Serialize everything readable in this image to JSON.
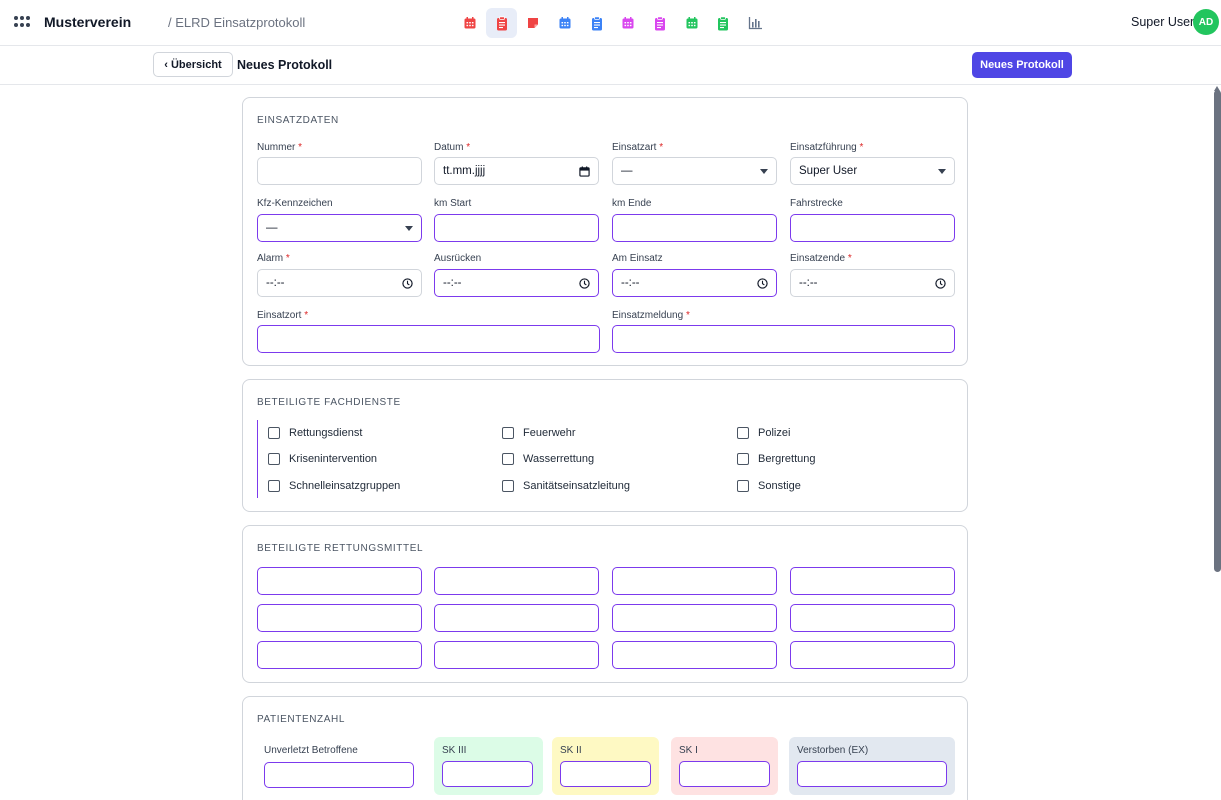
{
  "header": {
    "brand": "Musterverein",
    "breadcrumb": "/ ELRD Einsatzprotokoll",
    "apps": [
      {
        "icon": "calendar-icon",
        "color": "#ef4444"
      },
      {
        "icon": "clipboard-icon",
        "color": "#ef4444",
        "active": true
      },
      {
        "icon": "note-icon",
        "color": "#ef4444"
      },
      {
        "icon": "calendar-icon",
        "color": "#3b82f6"
      },
      {
        "icon": "clipboard-icon",
        "color": "#3b82f6"
      },
      {
        "icon": "calendar-icon",
        "color": "#d946ef"
      },
      {
        "icon": "clipboard-icon",
        "color": "#d946ef"
      },
      {
        "icon": "calendar-icon",
        "color": "#22c55e"
      },
      {
        "icon": "clipboard-icon",
        "color": "#22c55e"
      },
      {
        "icon": "bar-chart-icon",
        "color": "#64748b"
      }
    ],
    "user_name": "Super User",
    "avatar_initials": "AD"
  },
  "subbar": {
    "back_label": "‹ Übersicht",
    "title": "Neues Protokoll",
    "primary_label": "Neues Protokoll"
  },
  "einsatzdaten": {
    "title": "EINSATZDATEN",
    "nummer": {
      "label": "Nummer",
      "value": ""
    },
    "datum": {
      "label": "Datum",
      "value": "tt.mm.jjjj"
    },
    "einsatzart": {
      "label": "Einsatzart",
      "value": "—"
    },
    "einsatzfuehrung": {
      "label": "Einsatzführung",
      "value": "Super User"
    },
    "kfz": {
      "label": "Kfz-Kennzeichen",
      "value": "—"
    },
    "km_start": {
      "label": "km Start",
      "value": ""
    },
    "km_ende": {
      "label": "km Ende",
      "value": ""
    },
    "fahrstrecke": {
      "label": "Fahrstrecke",
      "value": ""
    },
    "alarm": {
      "label": "Alarm",
      "value": "--:--"
    },
    "ausruecken": {
      "label": "Ausrücken",
      "value": "--:--"
    },
    "am_einsatz": {
      "label": "Am Einsatz",
      "value": "--:--"
    },
    "einsatzende": {
      "label": "Einsatzende",
      "value": "--:--"
    },
    "einsatzort": {
      "label": "Einsatzort",
      "value": ""
    },
    "einsatzmeldung": {
      "label": "Einsatzmeldung",
      "value": ""
    },
    "required_mark": "*"
  },
  "fachdienste": {
    "title": "BETEILIGTE FACHDIENSTE",
    "items": [
      "Rettungsdienst",
      "Feuerwehr",
      "Polizei",
      "Krisenintervention",
      "Wasserrettung",
      "Bergrettung",
      "Schnelleinsatzgruppen",
      "Sanitätseinsatzleitung",
      "Sonstige"
    ]
  },
  "rettungsmittel": {
    "title": "BETEILIGTE RETTUNGSMITTEL"
  },
  "patientenzahl": {
    "title": "PATIENTENZAHL",
    "unverletzt": "Unverletzt Betroffene",
    "sk3": "SK III",
    "sk2": "SK II",
    "sk1": "SK I",
    "verstorben": "Verstorben (EX)",
    "colors": {
      "sk3": "#dcfce7",
      "sk2": "#fef9c3",
      "sk1": "#fee2e2",
      "verstorben": "#e2e8f0"
    }
  }
}
